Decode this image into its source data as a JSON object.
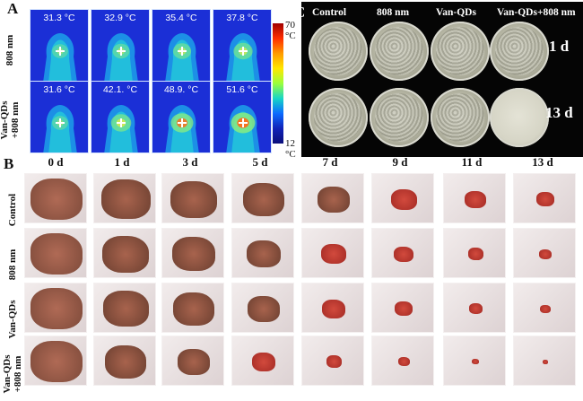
{
  "panel_a": {
    "letter": "A",
    "row_labels": [
      "808 nm",
      "Van-QDs\n+808 nm"
    ],
    "temps": [
      [
        "31.3 °C",
        "32.9 °C",
        "35.4 °C",
        "37.8 °C"
      ],
      [
        "31.6 °C",
        "42.1. °C",
        "48.9. °C",
        "51.6 °C"
      ]
    ],
    "colorbar_max": "70 °C",
    "colorbar_min": "12 °C"
  },
  "panel_c": {
    "letter": "C",
    "columns": [
      "Control",
      "808 nm",
      "Van-QDs",
      "Van-QDs+808 nm"
    ],
    "rows": [
      "1 d",
      "13 d"
    ]
  },
  "panel_b": {
    "letter": "B",
    "days": [
      "0 d",
      "1 d",
      "3 d",
      "5 d",
      "7 d",
      "9 d",
      "11 d",
      "13 d"
    ],
    "row_labels": [
      "Control",
      "808 nm",
      "Van-QDs",
      "Van-QDs\n+808 nm"
    ]
  }
}
